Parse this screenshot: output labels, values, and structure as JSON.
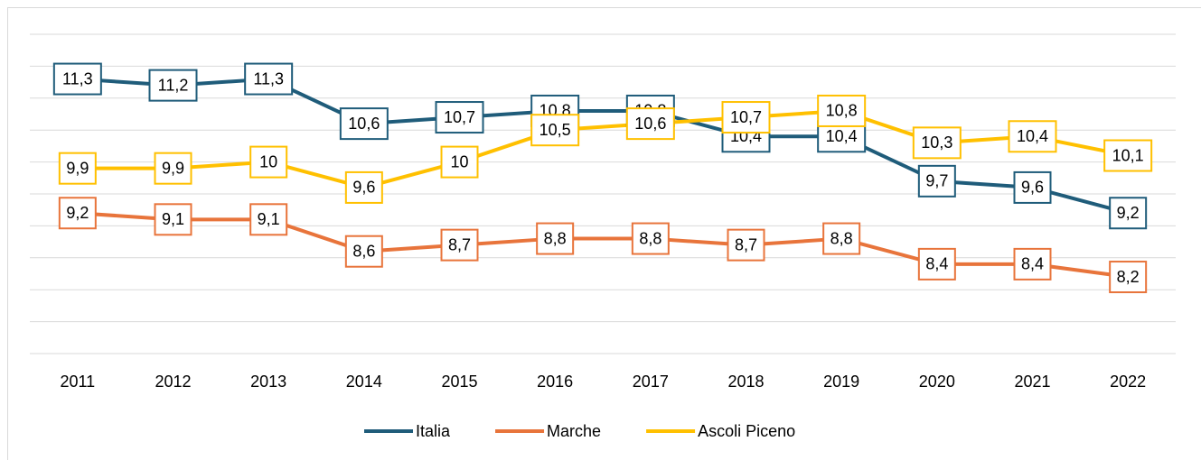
{
  "chart_data": {
    "type": "line",
    "categories": [
      "2011",
      "2012",
      "2013",
      "2014",
      "2015",
      "2016",
      "2017",
      "2018",
      "2019",
      "2020",
      "2021",
      "2022"
    ],
    "series": [
      {
        "name": "Italia",
        "color": "#1f5c7a",
        "values": [
          11.3,
          11.2,
          11.3,
          10.6,
          10.7,
          10.8,
          10.8,
          10.4,
          10.4,
          9.7,
          9.6,
          9.2
        ],
        "value_labels": [
          "11,3",
          "11,2",
          "11,3",
          "10,6",
          "10,7",
          "10,8",
          "10,8",
          "10,4",
          "10,4",
          "9,7",
          "9,6",
          "9,2"
        ]
      },
      {
        "name": "Marche",
        "color": "#e8743b",
        "values": [
          9.2,
          9.1,
          9.1,
          8.6,
          8.7,
          8.8,
          8.8,
          8.7,
          8.8,
          8.4,
          8.4,
          8.2
        ],
        "value_labels": [
          "9,2",
          "9,1",
          "9,1",
          "8,6",
          "8,7",
          "8,8",
          "8,8",
          "8,7",
          "8,8",
          "8,4",
          "8,4",
          "8,2"
        ]
      },
      {
        "name": "Ascoli Piceno",
        "color": "#ffc000",
        "values": [
          9.9,
          9.9,
          10,
          9.6,
          10,
          10.5,
          10.6,
          10.7,
          10.8,
          10.3,
          10.4,
          10.1
        ],
        "value_labels": [
          "9,9",
          "9,9",
          "10",
          "9,6",
          "10",
          "10,5",
          "10,6",
          "10,7",
          "10,8",
          "10,3",
          "10,4",
          "10,1"
        ]
      }
    ],
    "ylim": [
      7,
      12
    ],
    "yticks": [
      7,
      7.5,
      8,
      8.5,
      9,
      9.5,
      10,
      10.5,
      11,
      11.5,
      12
    ],
    "grid": true,
    "legend": "bottom"
  }
}
